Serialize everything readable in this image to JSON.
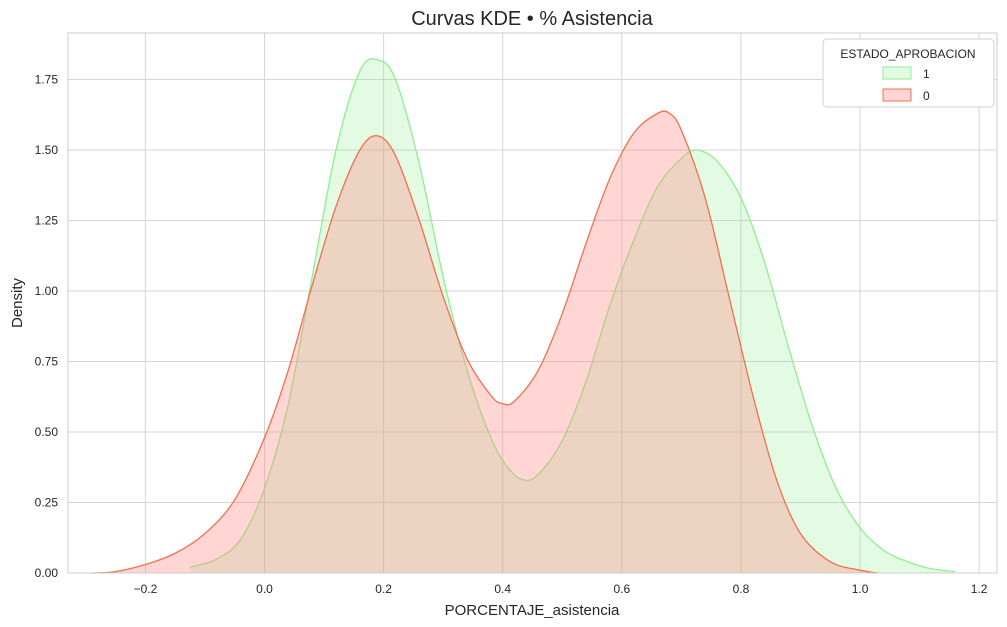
{
  "chart_data": {
    "type": "area",
    "title": "Curvas KDE • % Asistencia",
    "xlabel": "PORCENTAJE_asistencia",
    "ylabel": "Density",
    "xlim": [
      -0.33,
      1.23
    ],
    "ylim": [
      0,
      1.915
    ],
    "xticks": [
      -0.2,
      0.0,
      0.2,
      0.4,
      0.6,
      0.8,
      1.0,
      1.2
    ],
    "xtick_labels": [
      "−0.2",
      "0.0",
      "0.2",
      "0.4",
      "0.6",
      "0.8",
      "1.0",
      "1.2"
    ],
    "yticks": [
      0.0,
      0.25,
      0.5,
      0.75,
      1.0,
      1.25,
      1.5,
      1.75
    ],
    "ytick_labels": [
      "0.00",
      "0.25",
      "0.50",
      "0.75",
      "1.00",
      "1.25",
      "1.50",
      "1.75"
    ],
    "grid": true,
    "legend": {
      "title": "ESTADO_APROBACION",
      "placement": "top-right",
      "entries": [
        "1",
        "0"
      ]
    },
    "series": [
      {
        "name": "1",
        "line_color": "#90ee90",
        "fill_color": "#90ee90",
        "fill_opacity": 0.25,
        "x": [
          -0.125,
          -0.08,
          -0.04,
          0.0,
          0.04,
          0.08,
          0.12,
          0.16,
          0.19,
          0.22,
          0.26,
          0.3,
          0.34,
          0.38,
          0.41,
          0.435,
          0.46,
          0.5,
          0.54,
          0.58,
          0.62,
          0.66,
          0.7,
          0.725,
          0.76,
          0.8,
          0.84,
          0.88,
          0.92,
          0.96,
          1.0,
          1.04,
          1.08,
          1.12,
          1.16
        ],
        "y": [
          0.02,
          0.05,
          0.12,
          0.3,
          0.6,
          1.05,
          1.5,
          1.78,
          1.82,
          1.75,
          1.45,
          1.05,
          0.72,
          0.48,
          0.37,
          0.33,
          0.35,
          0.47,
          0.68,
          0.95,
          1.18,
          1.37,
          1.47,
          1.5,
          1.46,
          1.33,
          1.1,
          0.8,
          0.52,
          0.3,
          0.16,
          0.08,
          0.04,
          0.015,
          0.005
        ]
      },
      {
        "name": "0",
        "line_color": "#f07050",
        "fill_color": "#ff8a80",
        "fill_opacity": 0.35,
        "x": [
          -0.29,
          -0.25,
          -0.2,
          -0.15,
          -0.1,
          -0.05,
          0.0,
          0.04,
          0.08,
          0.12,
          0.16,
          0.19,
          0.22,
          0.26,
          0.3,
          0.34,
          0.38,
          0.4,
          0.42,
          0.46,
          0.5,
          0.54,
          0.58,
          0.62,
          0.66,
          0.68,
          0.7,
          0.74,
          0.78,
          0.82,
          0.86,
          0.9,
          0.95,
          1.0,
          1.03
        ],
        "y": [
          0.0,
          0.005,
          0.03,
          0.07,
          0.14,
          0.26,
          0.48,
          0.72,
          1.02,
          1.3,
          1.5,
          1.55,
          1.48,
          1.25,
          0.98,
          0.76,
          0.63,
          0.6,
          0.61,
          0.72,
          0.92,
          1.17,
          1.4,
          1.56,
          1.63,
          1.63,
          1.57,
          1.33,
          0.98,
          0.63,
          0.33,
          0.14,
          0.04,
          0.01,
          0.0
        ]
      }
    ]
  }
}
